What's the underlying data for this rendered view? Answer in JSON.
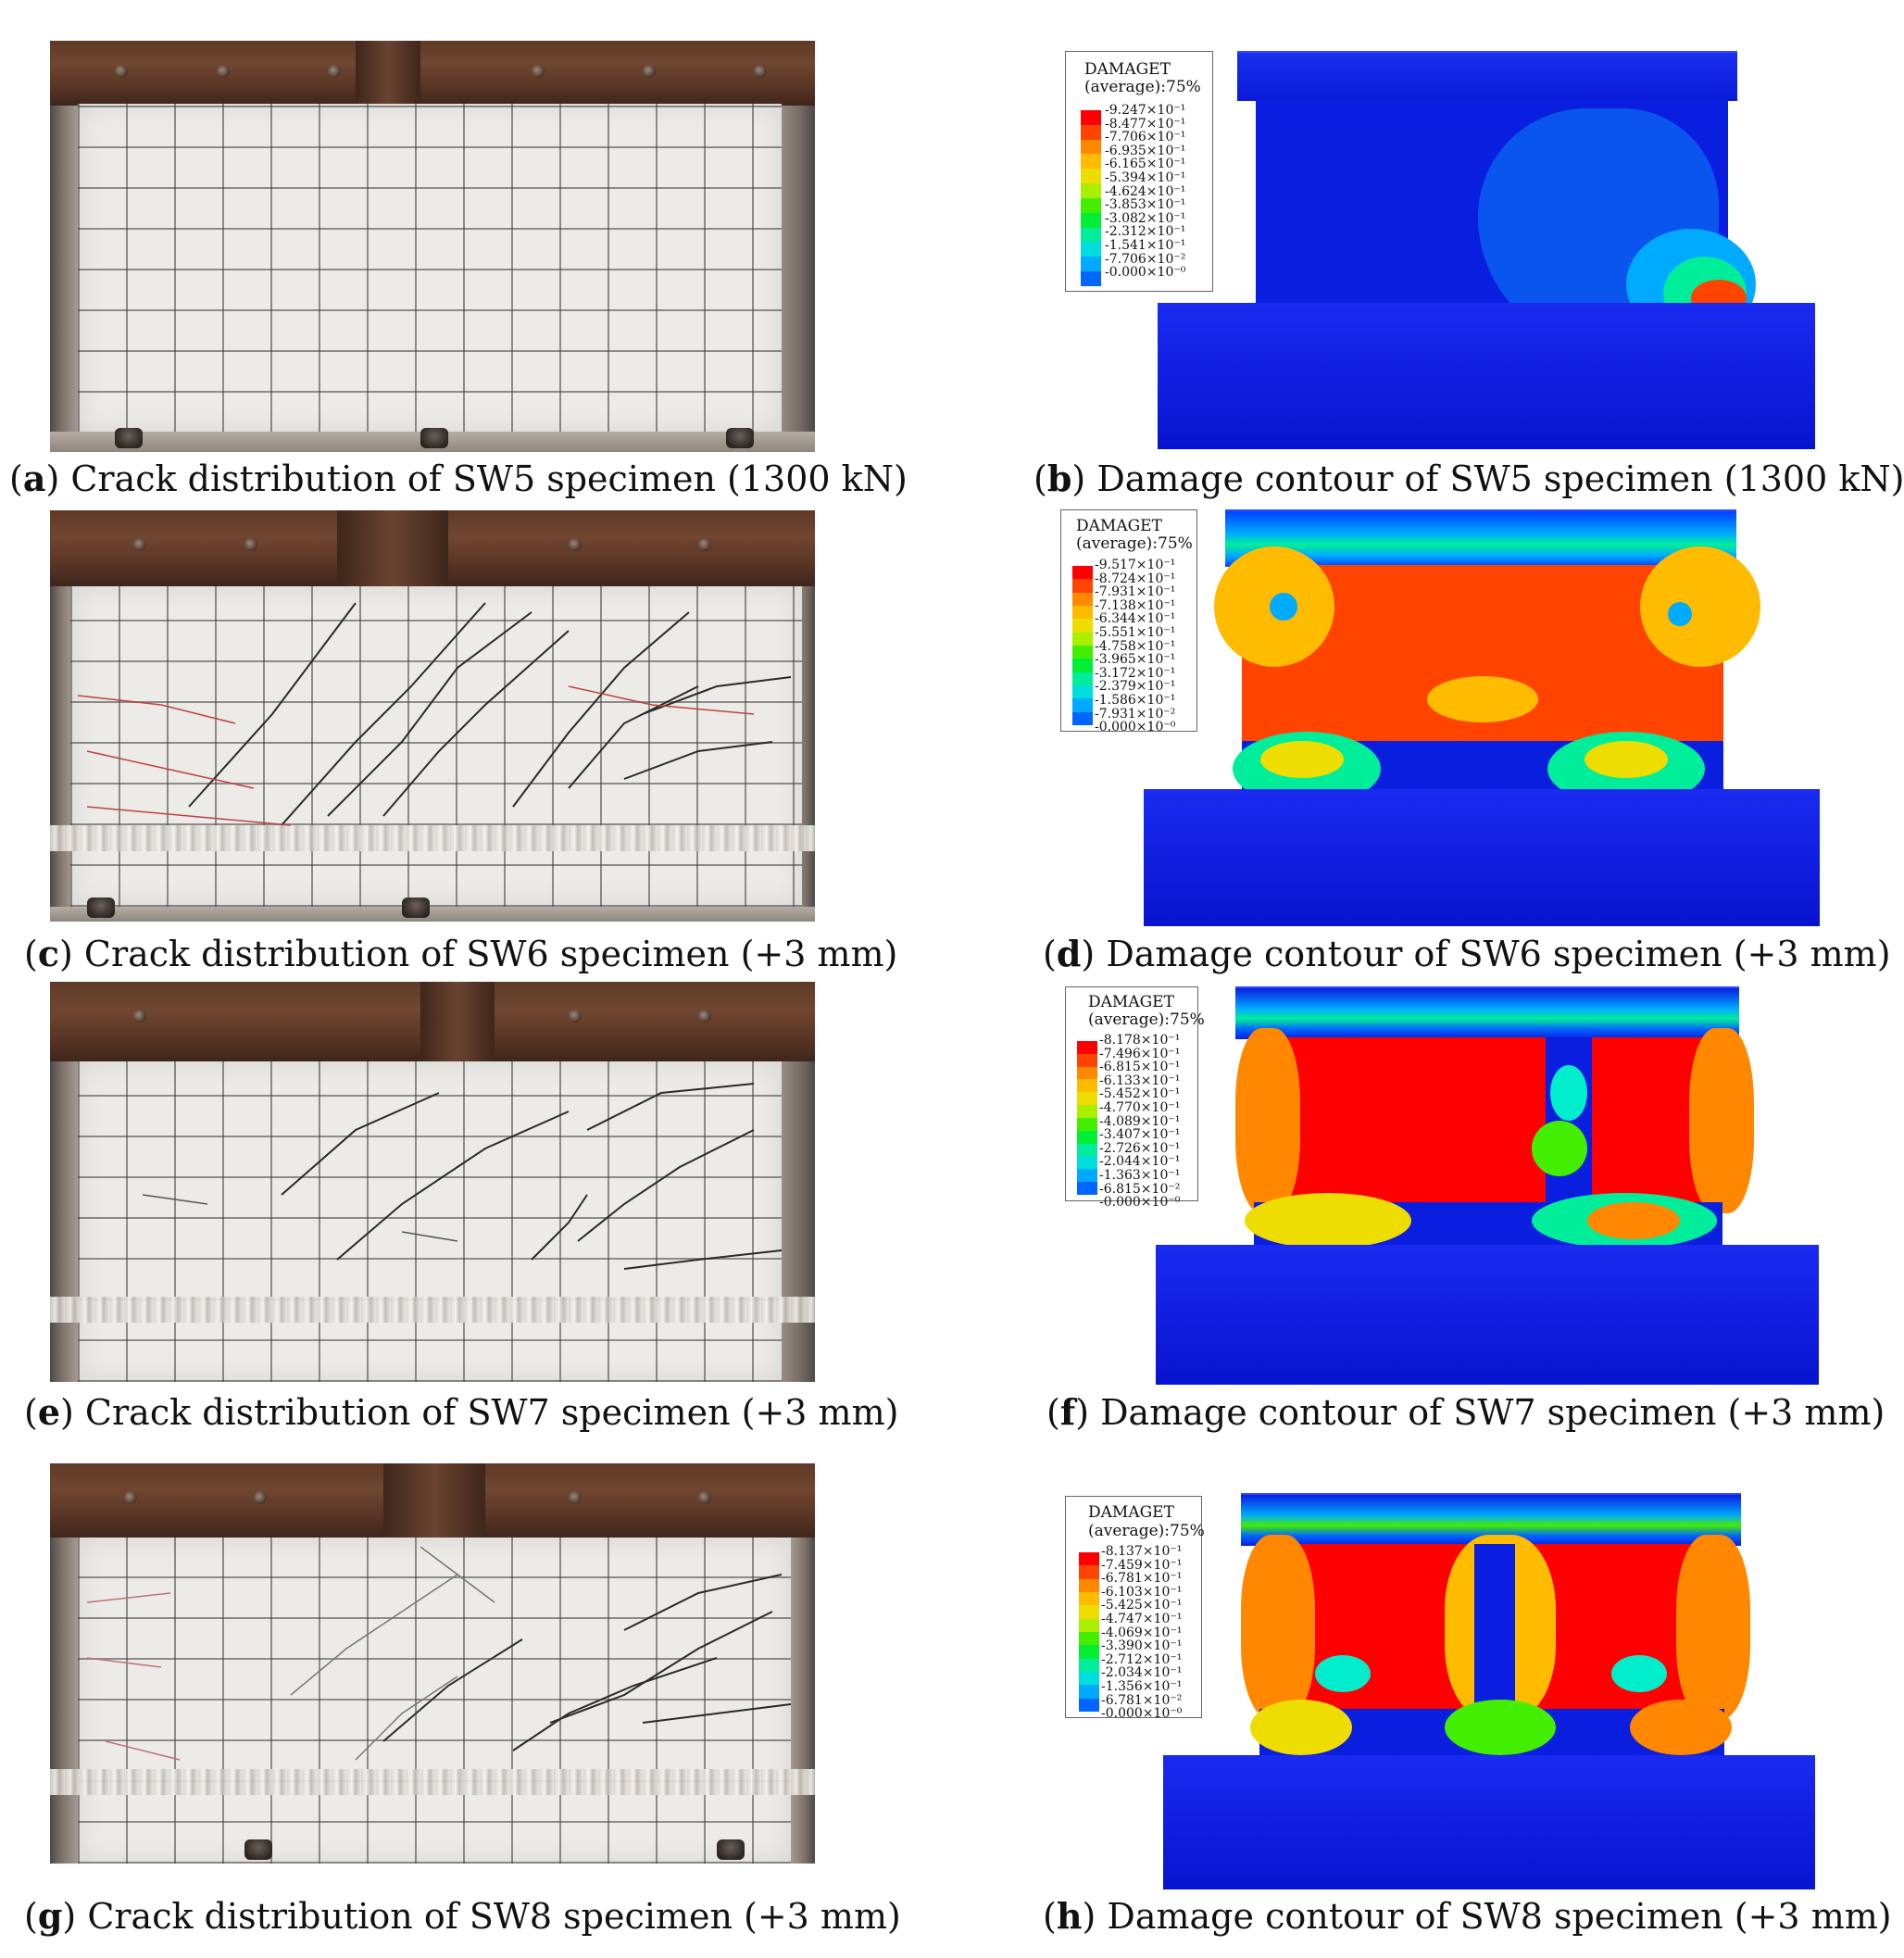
{
  "legend_title": "DAMAGET",
  "legend_subtitle": "(average):75%",
  "legend_colors": [
    "#ff0000",
    "#ff4400",
    "#ff8800",
    "#ffbb00",
    "#eedd00",
    "#aaee00",
    "#44ee00",
    "#00ee33",
    "#00ee99",
    "#00dddd",
    "#00aaff",
    "#0066ff",
    "#0022ee"
  ],
  "panels": [
    {
      "id": "a",
      "letter": "a",
      "caption": " Crack distribution of SW5 specimen (1300 kN)"
    },
    {
      "id": "b",
      "letter": "b",
      "caption": " Damage contour of SW5 specimen (1300 kN)",
      "ticks": [
        "9.247×10⁻¹",
        "8.477×10⁻¹",
        "7.706×10⁻¹",
        "6.935×10⁻¹",
        "6.165×10⁻¹",
        "5.394×10⁻¹",
        "4.624×10⁻¹",
        "3.853×10⁻¹",
        "3.082×10⁻¹",
        "2.312×10⁻¹",
        "1.541×10⁻¹",
        "7.706×10⁻²",
        "0.000×10⁻⁰"
      ]
    },
    {
      "id": "c",
      "letter": "c",
      "caption": " Crack distribution of SW6 specimen (+3 mm)"
    },
    {
      "id": "d",
      "letter": "d",
      "caption": " Damage contour of SW6 specimen (+3 mm)",
      "ticks": [
        "9.517×10⁻¹",
        "8.724×10⁻¹",
        "7.931×10⁻¹",
        "7.138×10⁻¹",
        "6.344×10⁻¹",
        "5.551×10⁻¹",
        "4.758×10⁻¹",
        "3.965×10⁻¹",
        "3.172×10⁻¹",
        "2.379×10⁻¹",
        "1.586×10⁻¹",
        "7.931×10⁻²",
        "0.000×10⁻⁰"
      ]
    },
    {
      "id": "e",
      "letter": "e",
      "caption": " Crack distribution of SW7 specimen (+3 mm)"
    },
    {
      "id": "f",
      "letter": "f",
      "caption": " Damage contour of SW7 specimen (+3 mm)",
      "ticks": [
        "8.178×10⁻¹",
        "7.496×10⁻¹",
        "6.815×10⁻¹",
        "6.133×10⁻¹",
        "5.452×10⁻¹",
        "4.770×10⁻¹",
        "4.089×10⁻¹",
        "3.407×10⁻¹",
        "2.726×10⁻¹",
        "2.044×10⁻¹",
        "1.363×10⁻¹",
        "6.815×10⁻²",
        "0.000×10⁻⁰"
      ]
    },
    {
      "id": "g",
      "letter": "g",
      "caption": " Crack distribution of SW8 specimen (+3 mm)"
    },
    {
      "id": "h",
      "letter": "h",
      "caption": " Damage contour of SW8 specimen (+3 mm)",
      "ticks": [
        "8.137×10⁻¹",
        "7.459×10⁻¹",
        "6.781×10⁻¹",
        "6.103×10⁻¹",
        "5.425×10⁻¹",
        "4.747×10⁻¹",
        "4.069×10⁻¹",
        "3.390×10⁻¹",
        "2.712×10⁻¹",
        "2.034×10⁻¹",
        "1.356×10⁻¹",
        "6.781×10⁻²",
        "0.000×10⁻⁰"
      ]
    }
  ]
}
